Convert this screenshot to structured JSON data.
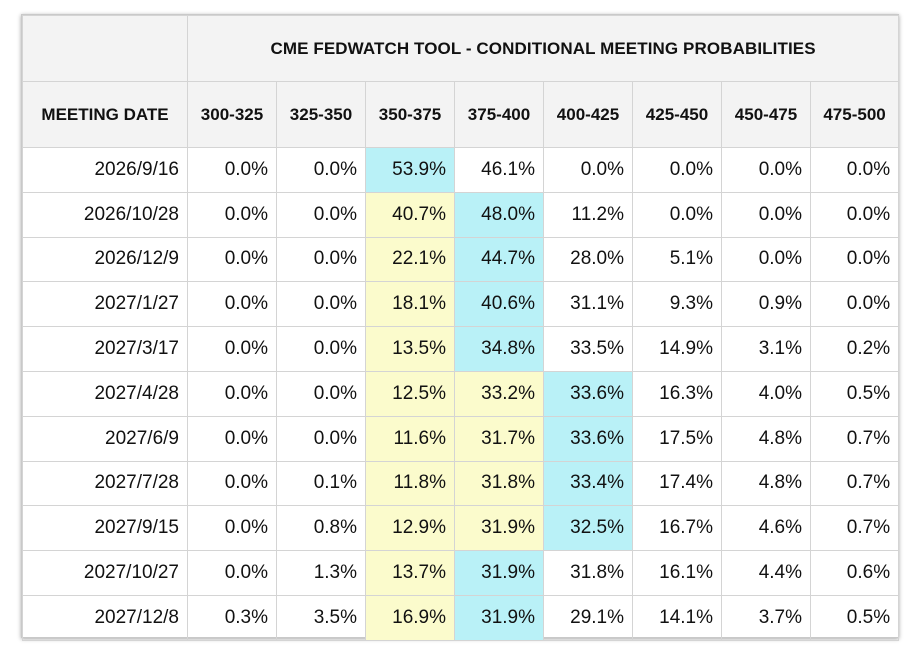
{
  "table": {
    "title": "CME FEDWATCH TOOL - CONDITIONAL MEETING PROBABILITIES",
    "date_header": "MEETING DATE",
    "columns": [
      "300-325",
      "325-350",
      "350-375",
      "375-400",
      "400-425",
      "425-450",
      "450-475",
      "475-500"
    ],
    "rows": [
      {
        "date": "2026/9/16",
        "values": [
          "0.0%",
          "0.0%",
          "53.9%",
          "46.1%",
          "0.0%",
          "0.0%",
          "0.0%",
          "0.0%"
        ],
        "highlight": [
          "",
          "",
          "cyan",
          "",
          "",
          "",
          "",
          ""
        ]
      },
      {
        "date": "2026/10/28",
        "values": [
          "0.0%",
          "0.0%",
          "40.7%",
          "48.0%",
          "11.2%",
          "0.0%",
          "0.0%",
          "0.0%"
        ],
        "highlight": [
          "",
          "",
          "yellow",
          "cyan",
          "",
          "",
          "",
          ""
        ]
      },
      {
        "date": "2026/12/9",
        "values": [
          "0.0%",
          "0.0%",
          "22.1%",
          "44.7%",
          "28.0%",
          "5.1%",
          "0.0%",
          "0.0%"
        ],
        "highlight": [
          "",
          "",
          "yellow",
          "cyan",
          "",
          "",
          "",
          ""
        ]
      },
      {
        "date": "2027/1/27",
        "values": [
          "0.0%",
          "0.0%",
          "18.1%",
          "40.6%",
          "31.1%",
          "9.3%",
          "0.9%",
          "0.0%"
        ],
        "highlight": [
          "",
          "",
          "yellow",
          "cyan",
          "",
          "",
          "",
          ""
        ]
      },
      {
        "date": "2027/3/17",
        "values": [
          "0.0%",
          "0.0%",
          "13.5%",
          "34.8%",
          "33.5%",
          "14.9%",
          "3.1%",
          "0.2%"
        ],
        "highlight": [
          "",
          "",
          "yellow",
          "cyan",
          "",
          "",
          "",
          ""
        ]
      },
      {
        "date": "2027/4/28",
        "values": [
          "0.0%",
          "0.0%",
          "12.5%",
          "33.2%",
          "33.6%",
          "16.3%",
          "4.0%",
          "0.5%"
        ],
        "highlight": [
          "",
          "",
          "yellow",
          "yellow",
          "cyan",
          "",
          "",
          ""
        ]
      },
      {
        "date": "2027/6/9",
        "values": [
          "0.0%",
          "0.0%",
          "11.6%",
          "31.7%",
          "33.6%",
          "17.5%",
          "4.8%",
          "0.7%"
        ],
        "highlight": [
          "",
          "",
          "yellow",
          "yellow",
          "cyan",
          "",
          "",
          ""
        ]
      },
      {
        "date": "2027/7/28",
        "values": [
          "0.0%",
          "0.1%",
          "11.8%",
          "31.8%",
          "33.4%",
          "17.4%",
          "4.8%",
          "0.7%"
        ],
        "highlight": [
          "",
          "",
          "yellow",
          "yellow",
          "cyan",
          "",
          "",
          ""
        ]
      },
      {
        "date": "2027/9/15",
        "values": [
          "0.0%",
          "0.8%",
          "12.9%",
          "31.9%",
          "32.5%",
          "16.7%",
          "4.6%",
          "0.7%"
        ],
        "highlight": [
          "",
          "",
          "yellow",
          "yellow",
          "cyan",
          "",
          "",
          ""
        ]
      },
      {
        "date": "2027/10/27",
        "values": [
          "0.0%",
          "1.3%",
          "13.7%",
          "31.9%",
          "31.8%",
          "16.1%",
          "4.4%",
          "0.6%"
        ],
        "highlight": [
          "",
          "",
          "yellow",
          "cyan",
          "",
          "",
          "",
          ""
        ]
      },
      {
        "date": "2027/12/8",
        "values": [
          "0.3%",
          "3.5%",
          "16.9%",
          "31.9%",
          "29.1%",
          "14.1%",
          "3.7%",
          "0.5%"
        ],
        "highlight": [
          "",
          "",
          "yellow",
          "cyan",
          "",
          "",
          "",
          ""
        ]
      }
    ]
  },
  "colors": {
    "header_bg": "#f3f3f3",
    "highlight_yellow": "#fbfbcc",
    "highlight_cyan": "#b9f1f7",
    "grid": "#d4d4d4"
  }
}
